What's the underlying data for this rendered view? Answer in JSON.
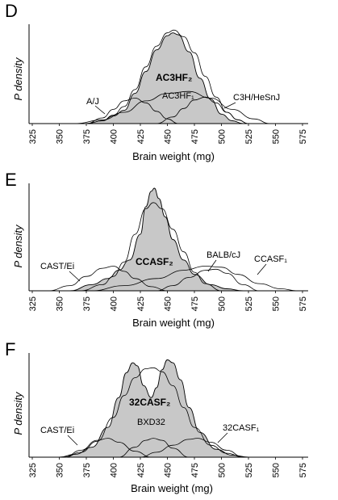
{
  "chart_data": [
    {
      "type": "area",
      "panel": "D",
      "ylabel": "P density",
      "xlabel": "Brain weight (mg)",
      "xlim": [
        325,
        575
      ],
      "xticks": [
        325,
        350,
        375,
        400,
        425,
        450,
        475,
        500,
        525,
        550,
        575
      ],
      "legend": "none",
      "grid": false,
      "annotations": [
        "A/J",
        "AC3HF₂",
        "AC3HF₁",
        "C3H/HeSnJ"
      ],
      "series": [
        {
          "name": "AC3HF₂",
          "style": "filled-gray",
          "x": [
            375,
            390,
            400,
            410,
            420,
            430,
            440,
            450,
            455,
            460,
            470,
            480,
            490,
            500,
            510,
            520
          ],
          "y": [
            0.0,
            0.03,
            0.08,
            0.14,
            0.32,
            0.55,
            0.78,
            0.93,
            0.96,
            0.94,
            0.76,
            0.48,
            0.26,
            0.1,
            0.03,
            0.0
          ]
        },
        {
          "name": "",
          "style": "envelope",
          "x": [
            375,
            390,
            400,
            410,
            420,
            430,
            440,
            450,
            456,
            465,
            475,
            485,
            495,
            505,
            515,
            525
          ],
          "y": [
            0.0,
            0.03,
            0.09,
            0.18,
            0.36,
            0.6,
            0.82,
            0.96,
            0.99,
            0.92,
            0.75,
            0.5,
            0.28,
            0.12,
            0.04,
            0.0
          ]
        },
        {
          "name": "A/J",
          "style": "line",
          "x": [
            375,
            390,
            400,
            410,
            420,
            430,
            440,
            450,
            460
          ],
          "y": [
            0.0,
            0.06,
            0.15,
            0.24,
            0.27,
            0.22,
            0.13,
            0.05,
            0.0
          ]
        },
        {
          "name": "AC3HF₁",
          "style": "line",
          "x": [
            365,
            390,
            410,
            430,
            450,
            470,
            490,
            510,
            530,
            545
          ],
          "y": [
            0.0,
            0.04,
            0.12,
            0.24,
            0.32,
            0.34,
            0.27,
            0.15,
            0.05,
            0.0
          ]
        },
        {
          "name": "C3H/HeSnJ",
          "style": "line",
          "x": [
            440,
            455,
            465,
            475,
            485,
            495,
            505,
            515,
            525
          ],
          "y": [
            0.0,
            0.07,
            0.16,
            0.25,
            0.28,
            0.22,
            0.12,
            0.04,
            0.0
          ]
        }
      ]
    },
    {
      "type": "area",
      "panel": "E",
      "ylabel": "P density",
      "xlabel": "Brain weight (mg)",
      "xlim": [
        325,
        575
      ],
      "xticks": [
        325,
        350,
        375,
        400,
        425,
        450,
        475,
        500,
        525,
        550,
        575
      ],
      "legend": "none",
      "grid": false,
      "annotations": [
        "CAST/Ei",
        "CCASF₂",
        "BALB/cJ",
        "CCASF₁"
      ],
      "series": [
        {
          "name": "CCASF₂",
          "style": "filled-gray",
          "x": [
            360,
            380,
            395,
            405,
            415,
            425,
            430,
            435,
            438,
            442,
            448,
            455,
            465,
            475,
            490,
            505,
            520
          ],
          "y": [
            0.0,
            0.06,
            0.12,
            0.2,
            0.3,
            0.55,
            0.82,
            0.97,
            1.0,
            0.9,
            0.72,
            0.5,
            0.3,
            0.16,
            0.06,
            0.02,
            0.0
          ]
        },
        {
          "name": "",
          "style": "envelope",
          "x": [
            370,
            390,
            400,
            410,
            420,
            430,
            437,
            445,
            455,
            465,
            475,
            485,
            500
          ],
          "y": [
            0.0,
            0.06,
            0.14,
            0.28,
            0.55,
            0.8,
            0.86,
            0.8,
            0.6,
            0.38,
            0.18,
            0.07,
            0.0
          ]
        },
        {
          "name": "CAST/Ei",
          "style": "line",
          "x": [
            340,
            360,
            375,
            390,
            400,
            410,
            420,
            435,
            450
          ],
          "y": [
            0.0,
            0.05,
            0.14,
            0.22,
            0.24,
            0.19,
            0.12,
            0.04,
            0.0
          ]
        },
        {
          "name": "BALB/cJ",
          "style": "line",
          "x": [
            440,
            455,
            470,
            485,
            495,
            505,
            520,
            535
          ],
          "y": [
            0.0,
            0.05,
            0.13,
            0.2,
            0.21,
            0.17,
            0.06,
            0.0
          ]
        },
        {
          "name": "CCASF₁",
          "style": "line",
          "x": [
            380,
            410,
            440,
            465,
            485,
            500,
            515,
            535,
            555,
            570
          ],
          "y": [
            0.0,
            0.05,
            0.12,
            0.2,
            0.24,
            0.23,
            0.16,
            0.07,
            0.02,
            0.0
          ]
        }
      ]
    },
    {
      "type": "area",
      "panel": "F",
      "ylabel": "P density",
      "xlabel": "Brain weight (mg)",
      "xlim": [
        325,
        575
      ],
      "xticks": [
        325,
        350,
        375,
        400,
        425,
        450,
        475,
        500,
        525,
        550,
        575
      ],
      "legend": "none",
      "grid": false,
      "annotations": [
        "CAST/Ei",
        "32CASF₂",
        "BXD32",
        "32CASF₁"
      ],
      "series": [
        {
          "name": "32CASF₂",
          "style": "filled-gray",
          "x": [
            350,
            365,
            380,
            395,
            405,
            412,
            418,
            422,
            428,
            435,
            440,
            445,
            450,
            455,
            462,
            470,
            480,
            495,
            510,
            525
          ],
          "y": [
            0.0,
            0.03,
            0.1,
            0.3,
            0.6,
            0.85,
            0.95,
            0.92,
            0.72,
            0.6,
            0.7,
            0.88,
            0.98,
            0.95,
            0.78,
            0.5,
            0.25,
            0.08,
            0.02,
            0.0
          ]
        },
        {
          "name": "",
          "style": "envelope",
          "x": [
            355,
            370,
            385,
            400,
            410,
            420,
            430,
            437,
            445,
            455,
            465,
            475,
            490,
            505,
            520
          ],
          "y": [
            0.0,
            0.05,
            0.16,
            0.4,
            0.62,
            0.8,
            0.89,
            0.9,
            0.86,
            0.72,
            0.5,
            0.3,
            0.12,
            0.04,
            0.0
          ]
        },
        {
          "name": "CAST/Ei",
          "style": "line",
          "x": [
            355,
            370,
            385,
            395,
            405,
            420,
            435
          ],
          "y": [
            0.0,
            0.07,
            0.17,
            0.19,
            0.15,
            0.06,
            0.0
          ]
        },
        {
          "name": "BXD32",
          "style": "line",
          "x": [
            405,
            420,
            430,
            437,
            445,
            455,
            470
          ],
          "y": [
            0.0,
            0.1,
            0.17,
            0.19,
            0.17,
            0.09,
            0.0
          ]
        },
        {
          "name": "32CASF₁",
          "style": "line",
          "x": [
            425,
            440,
            455,
            470,
            478,
            490,
            505,
            520
          ],
          "y": [
            0.0,
            0.05,
            0.12,
            0.18,
            0.19,
            0.15,
            0.07,
            0.0
          ]
        }
      ]
    }
  ]
}
